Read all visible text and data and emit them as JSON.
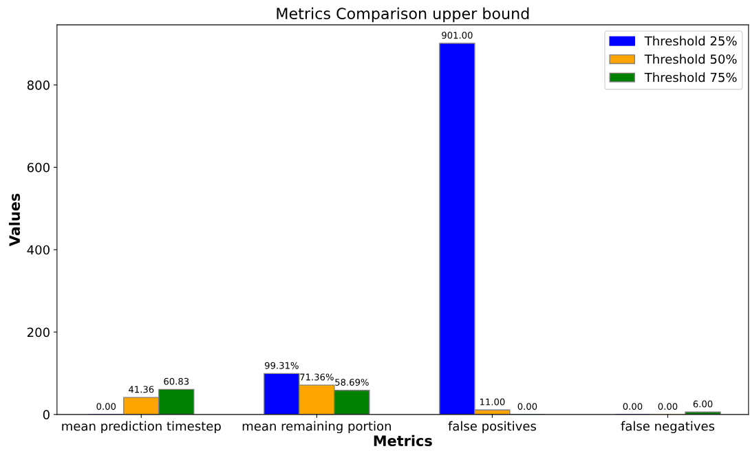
{
  "chart_data": {
    "type": "bar",
    "title": "Metrics Comparison upper bound",
    "xlabel": "Metrics",
    "ylabel": "Values",
    "categories": [
      "mean prediction timestep",
      "mean remaining portion",
      "false positives",
      "false negatives"
    ],
    "series": [
      {
        "name": "Threshold 25%",
        "color": "#0000ff",
        "values": [
          0,
          99.31,
          901,
          0
        ],
        "value_labels": [
          "0.00",
          "99.31%",
          "901.00",
          "0.00"
        ]
      },
      {
        "name": "Threshold 50%",
        "color": "#ffa500",
        "values": [
          41.36,
          71.36,
          11,
          0
        ],
        "value_labels": [
          "41.36",
          "71.36%",
          "11.00",
          "0.00"
        ]
      },
      {
        "name": "Threshold 75%",
        "color": "#008000",
        "values": [
          60.83,
          58.69,
          0,
          6
        ],
        "value_labels": [
          "60.83",
          "58.69%",
          "0.00",
          "6.00"
        ]
      }
    ],
    "ylim": [
      0,
      946
    ],
    "yticks": [
      0,
      200,
      400,
      600,
      800
    ],
    "grid": false,
    "legend": "top right"
  }
}
